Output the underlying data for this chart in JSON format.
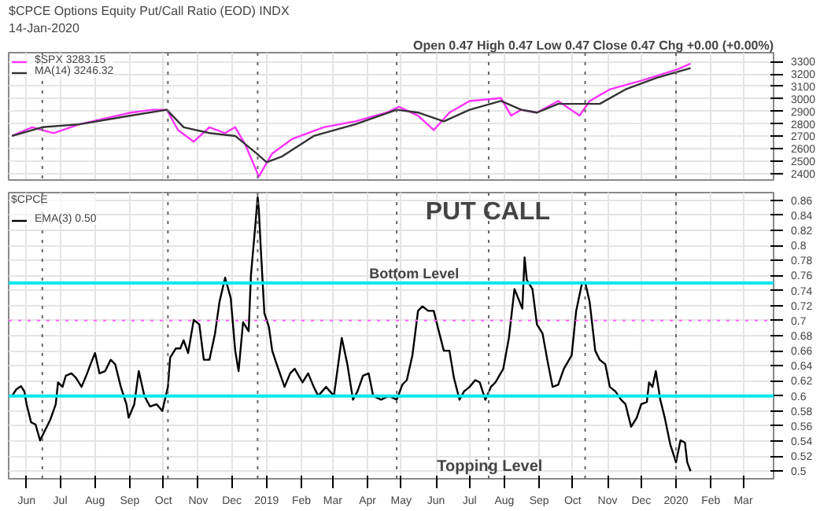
{
  "chart_data": [
    {
      "type": "line",
      "title": "$CPCE Options Equity Put/Call Ratio (EOD) INDX",
      "subtitle": "14-Jan-2020",
      "annotations": [
        "Open 0.47 High 0.47 Low 0.47 Close 0.47 Chg +0.00 (+0.00%)"
      ],
      "series": [
        {
          "name": "$SPX 3283.15",
          "color": "#ff33ff",
          "x": [
            "2018-05-19",
            "2018-06-06",
            "2018-06-25",
            "2018-07-18",
            "2018-08-10",
            "2018-09-02",
            "2018-09-21",
            "2018-10-04",
            "2018-10-14",
            "2018-10-28",
            "2018-11-11",
            "2018-11-25",
            "2018-12-04",
            "2018-12-13",
            "2018-12-23",
            "2018-12-25",
            "2019-01-06",
            "2019-01-24",
            "2019-02-21",
            "2019-03-21",
            "2019-04-18",
            "2019-04-29",
            "2019-05-16",
            "2019-05-30",
            "2019-06-13",
            "2019-07-01",
            "2019-07-29",
            "2019-08-07",
            "2019-08-16",
            "2019-08-30",
            "2019-09-18",
            "2019-10-07",
            "2019-10-16",
            "2019-11-03",
            "2019-12-01",
            "2020-01-03",
            "2020-01-14"
          ],
          "values": [
            2703,
            2773,
            2726,
            2796,
            2843,
            2890,
            2913,
            2913,
            2750,
            2657,
            2773,
            2726,
            2773,
            2633,
            2423,
            2377,
            2563,
            2680,
            2773,
            2820,
            2890,
            2936,
            2866,
            2750,
            2890,
            2983,
            3006,
            2866,
            2913,
            2890,
            2983,
            2866,
            2983,
            3076,
            3146,
            3239,
            3283
          ]
        },
        {
          "name": "MA(14) 3246.32",
          "color": "#333333",
          "x": [
            "2018-05-19",
            "2018-06-15",
            "2018-07-18",
            "2018-09-02",
            "2018-10-04",
            "2018-10-19",
            "2018-11-11",
            "2018-12-04",
            "2018-12-23",
            "2019-01-01",
            "2019-01-15",
            "2019-02-12",
            "2019-03-21",
            "2019-04-27",
            "2019-05-16",
            "2019-06-08",
            "2019-07-01",
            "2019-07-29",
            "2019-08-16",
            "2019-08-30",
            "2019-09-18",
            "2019-10-11",
            "2019-10-25",
            "2019-11-17",
            "2019-12-15",
            "2020-01-14"
          ],
          "values": [
            2703,
            2773,
            2796,
            2866,
            2913,
            2773,
            2726,
            2703,
            2563,
            2493,
            2540,
            2703,
            2796,
            2913,
            2890,
            2820,
            2913,
            2983,
            2913,
            2890,
            2960,
            2960,
            2960,
            3076,
            3169,
            3246
          ]
        }
      ],
      "xlim": [
        "2018-05-16",
        "2020-03-28"
      ],
      "xticks": [
        {
          "value": "2018-06-01",
          "label": null
        },
        {
          "value": "2018-07-01",
          "label": null
        },
        {
          "value": "2018-08-01",
          "label": null
        },
        {
          "value": "2018-09-01",
          "label": null
        },
        {
          "value": "2018-10-01",
          "label": null
        },
        {
          "value": "2018-11-01",
          "label": null
        },
        {
          "value": "2018-12-01",
          "label": null
        },
        {
          "value": "2019-01-01",
          "label": null
        },
        {
          "value": "2019-02-01",
          "label": null
        },
        {
          "value": "2019-03-01",
          "label": null
        },
        {
          "value": "2019-04-01",
          "label": null
        },
        {
          "value": "2019-05-01",
          "label": null
        },
        {
          "value": "2019-06-01",
          "label": null
        },
        {
          "value": "2019-07-01",
          "label": null
        },
        {
          "value": "2019-08-01",
          "label": null
        },
        {
          "value": "2019-09-01",
          "label": null
        },
        {
          "value": "2019-10-01",
          "label": null
        },
        {
          "value": "2019-11-01",
          "label": null
        },
        {
          "value": "2019-12-01",
          "label": null
        },
        {
          "value": "2020-01-01",
          "label": null
        },
        {
          "value": "2020-02-01",
          "label": null
        },
        {
          "value": "2020-03-01",
          "label": null
        }
      ],
      "ylim": [
        2350,
        3370
      ],
      "yticks": [
        2400,
        2500,
        2600,
        2700,
        2800,
        2900,
        3000,
        3100,
        3200,
        3300
      ],
      "tick_labels": "y",
      "grid": true,
      "legend": "top left",
      "ref_lines": [
        {
          "axis": "x",
          "value": "2018-06-15",
          "color": "#666666",
          "line_style": "dotted"
        },
        {
          "axis": "x",
          "value": "2018-10-05",
          "color": "#666666",
          "line_style": "dotted"
        },
        {
          "axis": "x",
          "value": "2018-12-24",
          "color": "#666666",
          "line_style": "dotted"
        },
        {
          "axis": "x",
          "value": "2019-04-27",
          "color": "#666666",
          "line_style": "dotted"
        },
        {
          "axis": "x",
          "value": "2019-07-18",
          "color": "#666666",
          "line_style": "dotted"
        },
        {
          "axis": "x",
          "value": "2019-10-12",
          "color": "#666666",
          "line_style": "dotted"
        },
        {
          "axis": "x",
          "value": "2020-01-01",
          "color": "#666666",
          "line_style": "dotted"
        }
      ]
    },
    {
      "type": "line",
      "legend_title": "$CPCE",
      "annotations": [
        "PUT CALL",
        "Topping Level"
      ],
      "series": [
        {
          "name": "EMA(3) 0.50",
          "color": "#000000",
          "x": [
            "2018-05-19",
            "2018-05-23",
            "2018-05-27",
            "2018-05-30",
            "2018-06-01",
            "2018-06-05",
            "2018-06-09",
            "2018-06-13",
            "2018-06-18",
            "2018-06-22",
            "2018-06-27",
            "2018-06-29",
            "2018-07-03",
            "2018-07-06",
            "2018-07-11",
            "2018-07-15",
            "2018-07-20",
            "2018-07-25",
            "2018-07-28",
            "2018-08-01",
            "2018-08-05",
            "2018-08-10",
            "2018-08-15",
            "2018-08-19",
            "2018-08-24",
            "2018-08-29",
            "2018-08-31",
            "2018-09-05",
            "2018-09-09",
            "2018-09-14",
            "2018-09-19",
            "2018-09-25",
            "2018-09-30",
            "2018-10-05",
            "2018-10-07",
            "2018-10-12",
            "2018-10-16",
            "2018-10-19",
            "2018-10-23",
            "2018-10-28",
            "2018-11-02",
            "2018-11-06",
            "2018-11-11",
            "2018-11-16",
            "2018-11-20",
            "2018-11-25",
            "2018-11-30",
            "2018-12-04",
            "2018-12-07",
            "2018-12-11",
            "2018-12-16",
            "2018-12-18",
            "2018-12-22",
            "2018-12-24",
            "2018-12-25",
            "2018-12-27",
            "2018-12-30",
            "2019-01-03",
            "2019-01-06",
            "2019-01-10",
            "2019-01-17",
            "2019-01-22",
            "2019-01-26",
            "2019-02-02",
            "2019-02-07",
            "2019-02-12",
            "2019-02-16",
            "2019-02-23",
            "2019-03-02",
            "2019-03-09",
            "2019-03-14",
            "2019-03-19",
            "2019-03-23",
            "2019-03-28",
            "2019-04-02",
            "2019-04-06",
            "2019-04-13",
            "2019-04-20",
            "2019-04-27",
            "2019-05-02",
            "2019-05-06",
            "2019-05-11",
            "2019-05-16",
            "2019-05-20",
            "2019-05-25",
            "2019-05-30",
            "2019-06-03",
            "2019-06-08",
            "2019-06-13",
            "2019-06-17",
            "2019-06-22",
            "2019-06-26",
            "2019-07-01",
            "2019-07-06",
            "2019-07-10",
            "2019-07-15",
            "2019-07-20",
            "2019-07-24",
            "2019-07-31",
            "2019-08-05",
            "2019-08-10",
            "2019-08-17",
            "2019-08-19",
            "2019-08-21",
            "2019-08-26",
            "2019-08-30",
            "2019-09-04",
            "2019-09-09",
            "2019-09-13",
            "2019-09-18",
            "2019-09-23",
            "2019-09-30",
            "2019-10-04",
            "2019-10-09",
            "2019-10-12",
            "2019-10-16",
            "2019-10-21",
            "2019-10-25",
            "2019-10-30",
            "2019-11-03",
            "2019-11-08",
            "2019-11-13",
            "2019-11-17",
            "2019-11-22",
            "2019-11-27",
            "2019-12-01",
            "2019-12-06",
            "2019-12-08",
            "2019-12-11",
            "2019-12-14",
            "2019-12-18",
            "2019-12-22",
            "2019-12-27",
            "2020-01-01",
            "2020-01-05",
            "2020-01-09",
            "2020-01-11",
            "2020-01-14"
          ],
          "values": [
            0.6,
            0.609,
            0.613,
            0.606,
            0.589,
            0.565,
            0.562,
            0.541,
            0.556,
            0.568,
            0.589,
            0.618,
            0.612,
            0.627,
            0.63,
            0.624,
            0.612,
            0.63,
            0.642,
            0.657,
            0.63,
            0.633,
            0.648,
            0.642,
            0.612,
            0.589,
            0.571,
            0.589,
            0.633,
            0.6,
            0.586,
            0.589,
            0.58,
            0.612,
            0.651,
            0.663,
            0.663,
            0.674,
            0.657,
            0.701,
            0.695,
            0.648,
            0.648,
            0.683,
            0.725,
            0.757,
            0.73,
            0.66,
            0.633,
            0.698,
            0.686,
            0.76,
            0.828,
            0.864,
            0.849,
            0.79,
            0.71,
            0.692,
            0.66,
            0.642,
            0.612,
            0.63,
            0.636,
            0.618,
            0.63,
            0.612,
            0.6,
            0.612,
            0.6,
            0.677,
            0.642,
            0.595,
            0.606,
            0.627,
            0.63,
            0.6,
            0.595,
            0.6,
            0.595,
            0.615,
            0.621,
            0.654,
            0.713,
            0.719,
            0.713,
            0.713,
            0.689,
            0.66,
            0.66,
            0.624,
            0.595,
            0.606,
            0.612,
            0.621,
            0.618,
            0.595,
            0.612,
            0.618,
            0.636,
            0.677,
            0.742,
            0.716,
            0.784,
            0.754,
            0.742,
            0.695,
            0.683,
            0.642,
            0.612,
            0.615,
            0.636,
            0.654,
            0.713,
            0.748,
            0.751,
            0.725,
            0.66,
            0.648,
            0.642,
            0.612,
            0.606,
            0.595,
            0.589,
            0.559,
            0.571,
            0.589,
            0.592,
            0.618,
            0.612,
            0.633,
            0.595,
            0.571,
            0.535,
            0.512,
            0.541,
            0.538,
            0.512,
            0.5
          ]
        }
      ],
      "xlim": [
        "2018-05-16",
        "2020-03-28"
      ],
      "xticks": [
        {
          "value": "2018-06-01",
          "label": "Jun"
        },
        {
          "value": "2018-07-01",
          "label": "Jul"
        },
        {
          "value": "2018-08-01",
          "label": "Aug"
        },
        {
          "value": "2018-09-01",
          "label": "Sep"
        },
        {
          "value": "2018-10-01",
          "label": "Oct"
        },
        {
          "value": "2018-11-01",
          "label": "Nov"
        },
        {
          "value": "2018-12-01",
          "label": "Dec"
        },
        {
          "value": "2019-01-01",
          "label": "2019"
        },
        {
          "value": "2019-02-01",
          "label": "Feb"
        },
        {
          "value": "2019-03-01",
          "label": "Mar"
        },
        {
          "value": "2019-04-01",
          "label": "Apr"
        },
        {
          "value": "2019-05-01",
          "label": "May"
        },
        {
          "value": "2019-06-01",
          "label": "Jun"
        },
        {
          "value": "2019-07-01",
          "label": "Jul"
        },
        {
          "value": "2019-08-01",
          "label": "Aug"
        },
        {
          "value": "2019-09-01",
          "label": "Sep"
        },
        {
          "value": "2019-10-01",
          "label": "Oct"
        },
        {
          "value": "2019-11-01",
          "label": "Nov"
        },
        {
          "value": "2019-12-01",
          "label": "Dec"
        },
        {
          "value": "2020-01-01",
          "label": "2020"
        },
        {
          "value": "2020-02-01",
          "label": "Feb"
        },
        {
          "value": "2020-03-01",
          "label": "Mar"
        }
      ],
      "ylim": [
        0.49,
        0.87
      ],
      "yticks": [
        0.5,
        0.52,
        0.54,
        0.56,
        0.58,
        0.6,
        0.62,
        0.64,
        0.66,
        0.68,
        0.7,
        0.72,
        0.74,
        0.76,
        0.78,
        0.8,
        0.82,
        0.84,
        0.86
      ],
      "grid": true,
      "legend": "top left",
      "ref_lines": [
        {
          "axis": "y",
          "value": 0.75,
          "label": "Bottom Level",
          "color": "#00e5ee",
          "line_style": "solid"
        },
        {
          "axis": "y",
          "value": 0.6,
          "color": "#00e5ee",
          "line_style": "solid"
        },
        {
          "axis": "y",
          "value": 0.7,
          "color": "#ff66ff",
          "line_style": "dotted"
        },
        {
          "axis": "x",
          "value": "2018-06-15",
          "color": "#666666",
          "line_style": "dotted"
        },
        {
          "axis": "x",
          "value": "2018-10-05",
          "color": "#666666",
          "line_style": "dotted"
        },
        {
          "axis": "x",
          "value": "2018-12-24",
          "color": "#666666",
          "line_style": "dotted"
        },
        {
          "axis": "x",
          "value": "2019-04-27",
          "color": "#666666",
          "line_style": "dotted"
        },
        {
          "axis": "x",
          "value": "2019-07-18",
          "color": "#666666",
          "line_style": "dotted"
        },
        {
          "axis": "x",
          "value": "2019-10-12",
          "color": "#666666",
          "line_style": "dotted"
        },
        {
          "axis": "x",
          "value": "2020-01-01",
          "color": "#666666",
          "line_style": "dotted"
        }
      ]
    }
  ]
}
